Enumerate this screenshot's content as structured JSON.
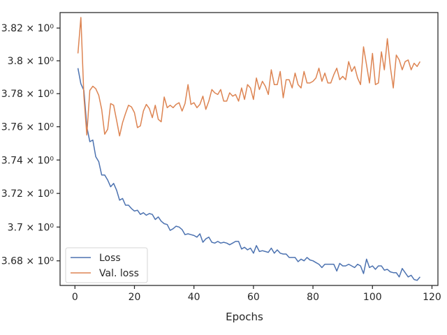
{
  "chart_data": {
    "type": "line",
    "xlabel": "Epochs",
    "ylabel": "",
    "xlim": [
      -5,
      122
    ],
    "ylim": [
      3.6655,
      3.8295
    ],
    "x_ticks": [
      0,
      20,
      40,
      60,
      80,
      100,
      120
    ],
    "y_ticks": [
      {
        "value": 3.68,
        "label": "3.68 × 10⁰"
      },
      {
        "value": 3.7,
        "label": "3.7 × 10⁰"
      },
      {
        "value": 3.72,
        "label": "3.72 × 10⁰"
      },
      {
        "value": 3.74,
        "label": "3.74 × 10⁰"
      },
      {
        "value": 3.76,
        "label": "3.76 × 10⁰"
      },
      {
        "value": 3.78,
        "label": "3.78 × 10⁰"
      },
      {
        "value": 3.8,
        "label": "3.8 × 10⁰"
      },
      {
        "value": 3.82,
        "label": "3.82 × 10⁰"
      }
    ],
    "y_scale": "log",
    "grid": false,
    "legend_position": "lower-left",
    "series": [
      {
        "name": "Loss",
        "color": "#4c72b0",
        "x": [
          1,
          2,
          3,
          4,
          5,
          6,
          7,
          8,
          9,
          10,
          11,
          12,
          13,
          14,
          15,
          16,
          17,
          18,
          19,
          20,
          21,
          22,
          23,
          24,
          25,
          26,
          27,
          28,
          29,
          30,
          31,
          32,
          33,
          34,
          35,
          36,
          37,
          38,
          39,
          40,
          41,
          42,
          43,
          44,
          45,
          46,
          47,
          48,
          49,
          50,
          51,
          52,
          53,
          54,
          55,
          56,
          57,
          58,
          59,
          60,
          61,
          62,
          63,
          64,
          65,
          66,
          67,
          68,
          69,
          70,
          71,
          72,
          73,
          74,
          75,
          76,
          77,
          78,
          79,
          80,
          81,
          82,
          83,
          84,
          85,
          86,
          87,
          88,
          89,
          90,
          91,
          92,
          93,
          94,
          95,
          96,
          97,
          98,
          99,
          100,
          101,
          102,
          103,
          104,
          105,
          106,
          107,
          108,
          109,
          110,
          111,
          112,
          113,
          114,
          115,
          116
        ],
        "values": [
          3.7955,
          3.786,
          3.782,
          3.76,
          3.751,
          3.752,
          3.742,
          3.739,
          3.731,
          3.731,
          3.728,
          3.724,
          3.726,
          3.722,
          3.716,
          3.717,
          3.713,
          3.713,
          3.711,
          3.7095,
          3.71,
          3.7075,
          3.7085,
          3.707,
          3.708,
          3.7075,
          3.7045,
          3.706,
          3.7035,
          3.702,
          3.7015,
          3.698,
          3.699,
          3.7005,
          3.7,
          3.6985,
          3.6955,
          3.696,
          3.6955,
          3.695,
          3.694,
          3.696,
          3.691,
          3.693,
          3.694,
          3.691,
          3.6905,
          3.6915,
          3.6905,
          3.691,
          3.6905,
          3.6895,
          3.6905,
          3.6915,
          3.6915,
          3.687,
          3.688,
          3.6865,
          3.6875,
          3.6845,
          3.689,
          3.6855,
          3.686,
          3.6855,
          3.685,
          3.6875,
          3.6845,
          3.6865,
          3.6845,
          3.684,
          3.684,
          3.682,
          3.682,
          3.682,
          3.6795,
          3.681,
          3.68,
          3.682,
          3.6805,
          3.68,
          3.679,
          3.678,
          3.676,
          3.678,
          3.678,
          3.678,
          3.678,
          3.674,
          3.6785,
          3.677,
          3.677,
          3.678,
          3.677,
          3.676,
          3.678,
          3.677,
          3.6725,
          3.681,
          3.676,
          3.677,
          3.675,
          3.677,
          3.677,
          3.6745,
          3.675,
          3.6735,
          3.673,
          3.673,
          3.6705,
          3.6755,
          3.673,
          3.6705,
          3.6715,
          3.669,
          3.6685,
          3.6705
        ]
      },
      {
        "name": "Val. loss",
        "color": "#dd8452",
        "x": [
          1,
          2,
          3,
          4,
          5,
          6,
          7,
          8,
          9,
          10,
          11,
          12,
          13,
          14,
          15,
          16,
          17,
          18,
          19,
          20,
          21,
          22,
          23,
          24,
          25,
          26,
          27,
          28,
          29,
          30,
          31,
          32,
          33,
          34,
          35,
          36,
          37,
          38,
          39,
          40,
          41,
          42,
          43,
          44,
          45,
          46,
          47,
          48,
          49,
          50,
          51,
          52,
          53,
          54,
          55,
          56,
          57,
          58,
          59,
          60,
          61,
          62,
          63,
          64,
          65,
          66,
          67,
          68,
          69,
          70,
          71,
          72,
          73,
          74,
          75,
          76,
          77,
          78,
          79,
          80,
          81,
          82,
          83,
          84,
          85,
          86,
          87,
          88,
          89,
          90,
          91,
          92,
          93,
          94,
          95,
          96,
          97,
          98,
          99,
          100,
          101,
          102,
          103,
          104,
          105,
          106,
          107,
          108,
          109,
          110,
          111,
          112,
          113,
          114,
          115,
          116
        ],
        "values": [
          3.8045,
          3.8265,
          3.7785,
          3.755,
          3.782,
          3.7845,
          3.783,
          3.779,
          3.7705,
          3.7555,
          3.7585,
          3.774,
          3.773,
          3.764,
          3.7545,
          3.7625,
          3.768,
          3.773,
          3.772,
          3.7685,
          3.7595,
          3.7605,
          3.7695,
          3.7735,
          3.771,
          3.7655,
          3.773,
          3.7645,
          3.763,
          3.778,
          3.7715,
          3.773,
          3.7715,
          3.7735,
          3.7745,
          3.7695,
          3.774,
          3.7855,
          3.7735,
          3.7745,
          3.7715,
          3.7735,
          3.7785,
          3.7705,
          3.7755,
          3.7825,
          3.7805,
          3.7795,
          3.7825,
          3.7755,
          3.7755,
          3.7805,
          3.7785,
          3.7795,
          3.7755,
          3.7835,
          3.7765,
          3.7855,
          3.7835,
          3.7765,
          3.7895,
          3.7825,
          3.7875,
          3.7845,
          3.7795,
          3.7945,
          3.7855,
          3.7855,
          3.7935,
          3.7775,
          3.7885,
          3.7885,
          3.7835,
          3.7925,
          3.7855,
          3.7835,
          3.7935,
          3.7865,
          3.7865,
          3.7875,
          3.7895,
          3.7955,
          3.7875,
          3.7925,
          3.7865,
          3.7865,
          3.7915,
          3.7955,
          3.7885,
          3.7905,
          3.7885,
          3.7995,
          3.7935,
          3.7965,
          3.7895,
          3.7855,
          3.8085,
          3.7975,
          3.7865,
          3.8045,
          3.7855,
          3.7865,
          3.8055,
          3.7945,
          3.8135,
          3.7965,
          3.7835,
          3.8035,
          3.8005,
          3.7945,
          3.7995,
          3.8005,
          3.7945,
          3.7985,
          3.7965,
          3.7995
        ]
      }
    ]
  }
}
